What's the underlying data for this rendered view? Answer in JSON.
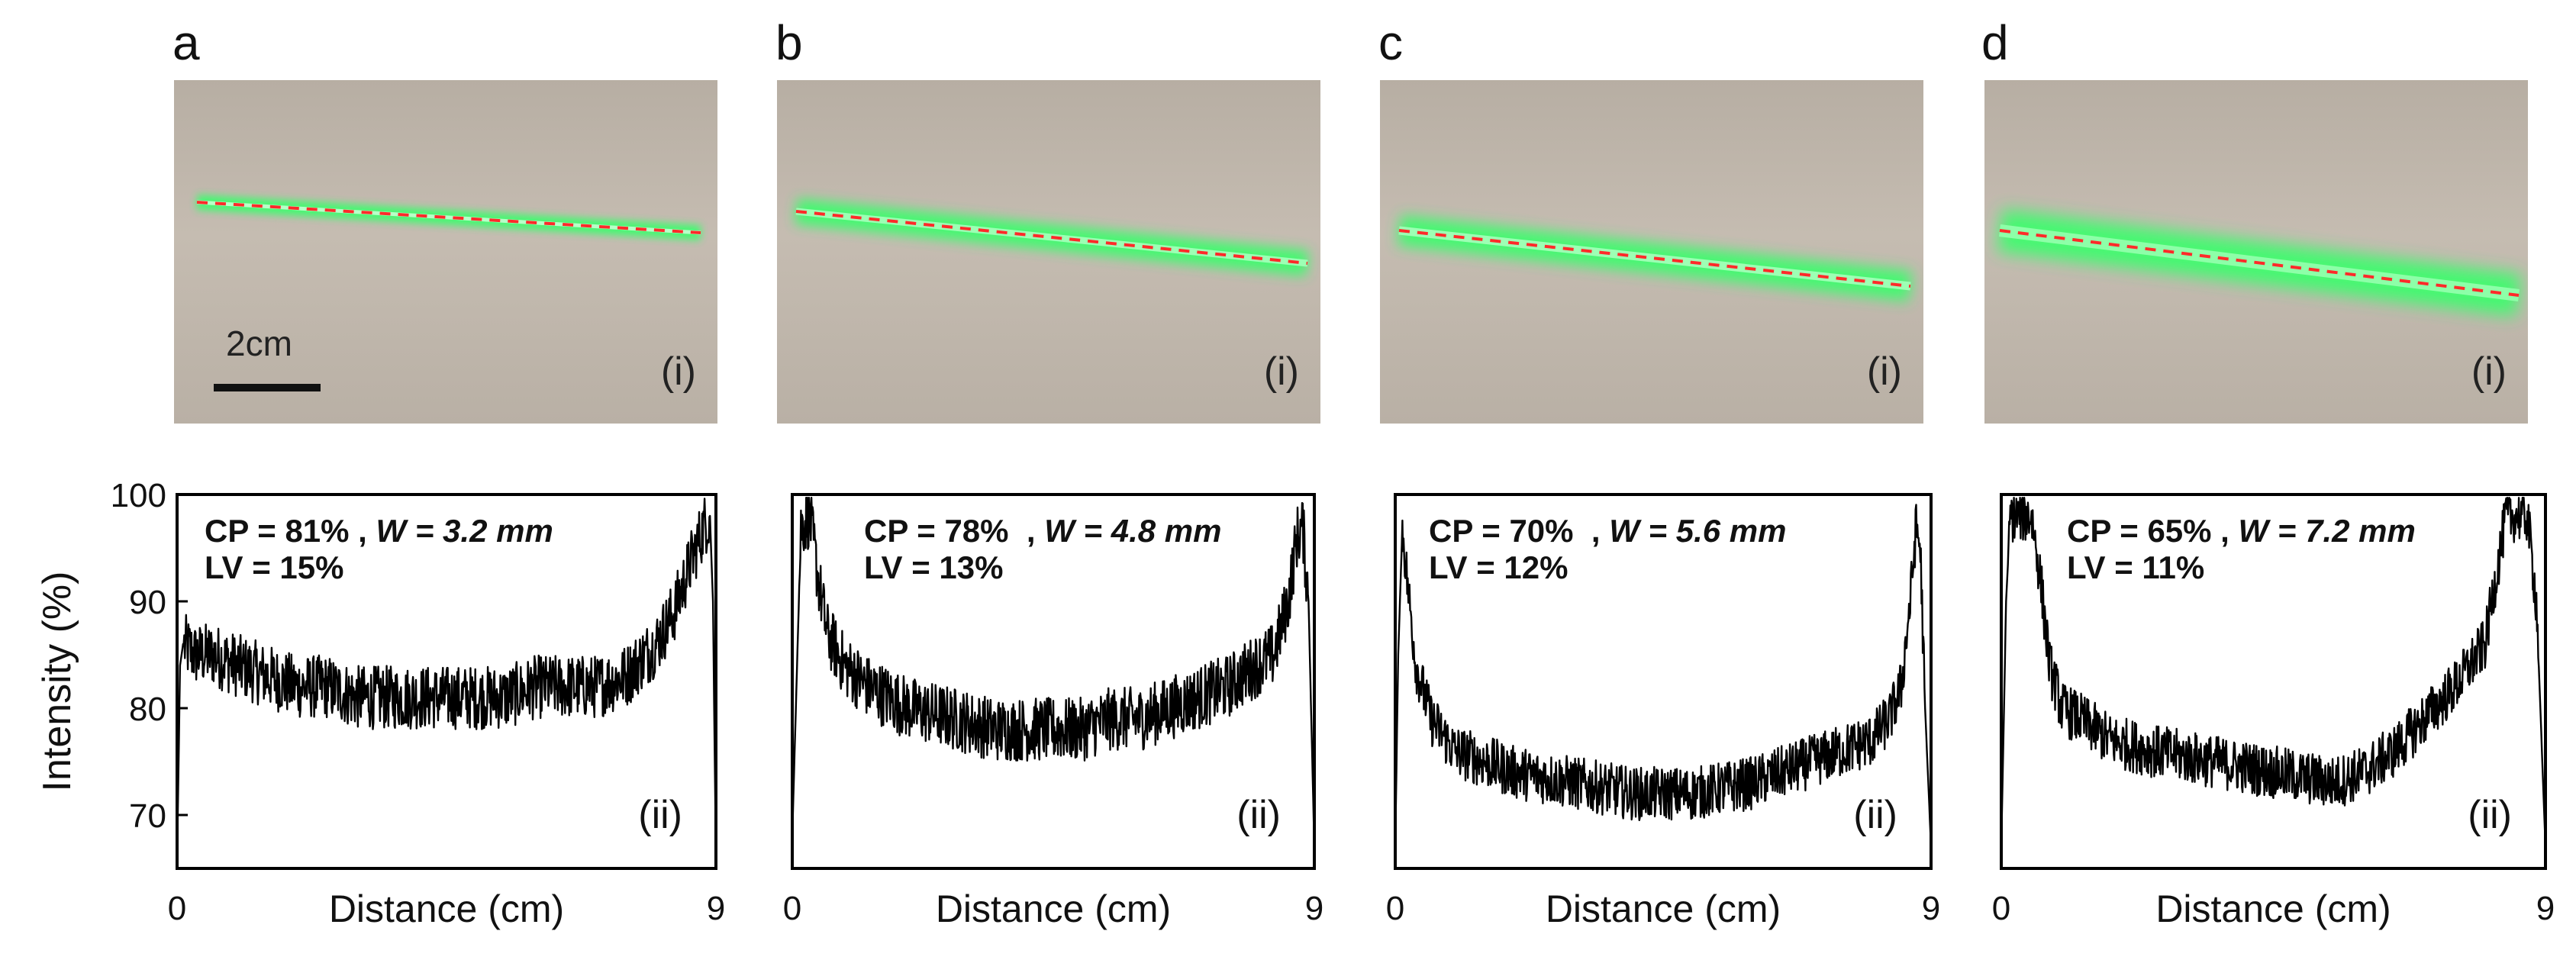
{
  "panels": [
    {
      "letter": "a",
      "photo_label": "(i)",
      "scale_label": "2cm",
      "plot_label": "(ii)",
      "cp": "CP = 81%",
      "sep": " , ",
      "w": "W = 3.2 mm",
      "lv": "LV = 15%"
    },
    {
      "letter": "b",
      "photo_label": "(i)",
      "plot_label": "(ii)",
      "cp": "CP = 78%",
      "sep": "  , ",
      "w": "W = 4.8 mm",
      "lv": "LV = 13%"
    },
    {
      "letter": "c",
      "photo_label": "(i)",
      "plot_label": "(ii)",
      "cp": "CP = 70%",
      "sep": "  , ",
      "w": "W = 5.6 mm",
      "lv": "LV = 12%"
    },
    {
      "letter": "d",
      "photo_label": "(i)",
      "plot_label": "(ii)",
      "cp": "CP = 65%",
      "sep": " , ",
      "w": "W = 7.2 mm",
      "lv": "LV = 11%"
    }
  ],
  "colors": {
    "trace": "#000000",
    "laser": "#39ff6a",
    "dash": "#ff2a2a",
    "axis": "#000000"
  },
  "chart_data": [
    {
      "type": "line",
      "panel": "a",
      "xlabel": "Distance (cm)",
      "ylabel": "Intensity (%)",
      "xlim": [
        0,
        9
      ],
      "ylim": [
        65,
        100
      ],
      "yticks": [
        70,
        80,
        90,
        100
      ],
      "xticks": [
        0,
        9
      ],
      "x": [
        0,
        0.05,
        0.1,
        0.3,
        0.6,
        1.0,
        1.5,
        2.0,
        2.5,
        3.0,
        3.5,
        4.0,
        4.5,
        5.0,
        5.5,
        6.0,
        6.5,
        7.0,
        7.5,
        8.0,
        8.3,
        8.6,
        8.8,
        8.9,
        8.95,
        9.0
      ],
      "y": [
        66,
        84,
        86,
        85,
        85,
        84,
        83,
        82,
        82,
        81,
        81,
        81,
        81,
        81,
        81,
        82,
        82,
        82,
        83,
        86,
        89,
        94,
        97,
        98,
        90,
        66
      ],
      "noise": 3
    },
    {
      "type": "line",
      "panel": "b",
      "xlabel": "Distance (cm)",
      "ylabel": "Intensity (%)",
      "xlim": [
        0,
        9
      ],
      "ylim": [
        65,
        100
      ],
      "yticks": [
        70,
        80,
        90,
        100
      ],
      "xticks": [
        0,
        9
      ],
      "x": [
        0,
        0.15,
        0.3,
        0.45,
        0.6,
        0.9,
        1.3,
        2.0,
        2.8,
        3.5,
        4.0,
        4.5,
        5.0,
        5.5,
        6.0,
        6.5,
        7.0,
        7.5,
        8.0,
        8.3,
        8.55,
        8.7,
        8.8,
        8.9,
        9.0
      ],
      "y": [
        68,
        97,
        98,
        92,
        87,
        84,
        82,
        80,
        79,
        78,
        78,
        78,
        78,
        79,
        79,
        80,
        81,
        82,
        84,
        85,
        90,
        96,
        97,
        90,
        67
      ],
      "noise": 3
    },
    {
      "type": "line",
      "panel": "c",
      "xlabel": "Distance (cm)",
      "ylabel": "Intensity (%)",
      "xlim": [
        0,
        9
      ],
      "ylim": [
        65,
        100
      ],
      "yticks": [
        70,
        80,
        90,
        100
      ],
      "xticks": [
        0,
        9
      ],
      "x": [
        0,
        0.05,
        0.12,
        0.2,
        0.35,
        0.6,
        1.0,
        1.5,
        2.0,
        3.0,
        4.0,
        5.0,
        6.0,
        7.0,
        7.5,
        8.0,
        8.3,
        8.5,
        8.65,
        8.75,
        8.82,
        8.9,
        9.0
      ],
      "y": [
        67,
        85,
        97,
        92,
        84,
        79,
        76,
        75,
        74,
        73,
        72,
        72,
        73,
        75,
        76,
        77,
        79,
        82,
        90,
        97,
        95,
        80,
        67
      ],
      "noise": 2.5
    },
    {
      "type": "line",
      "panel": "d",
      "xlabel": "Distance (cm)",
      "ylabel": "Intensity (%)",
      "xlim": [
        0,
        9
      ],
      "ylim": [
        65,
        100
      ],
      "yticks": [
        70,
        80,
        90,
        100
      ],
      "xticks": [
        0,
        9
      ],
      "x": [
        0,
        0.08,
        0.15,
        0.3,
        0.5,
        0.65,
        0.8,
        1.0,
        1.3,
        1.8,
        2.5,
        3.5,
        4.5,
        5.5,
        6.0,
        6.5,
        7.0,
        7.5,
        8.0,
        8.2,
        8.35,
        8.5,
        8.7,
        8.85,
        9.0
      ],
      "y": [
        67,
        90,
        98,
        98,
        98,
        92,
        84,
        80,
        79,
        77,
        76,
        75,
        74,
        73,
        74,
        76,
        79,
        82,
        86,
        93,
        98,
        98,
        98,
        90,
        67
      ],
      "noise": 2.5
    }
  ]
}
